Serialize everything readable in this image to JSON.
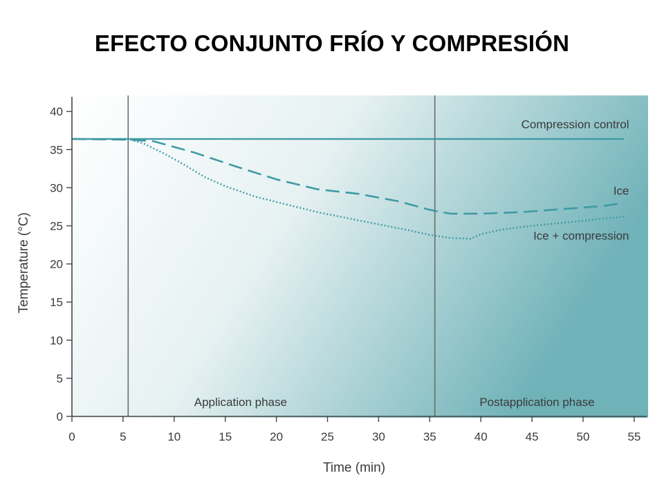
{
  "slide": {
    "title": "EFECTO CONJUNTO FRÍO Y COMPRESIÓN"
  },
  "colors": {
    "series": "#3f9aa3",
    "phase_line": "#6b6b6b",
    "axis": "#444444",
    "gradient_start": "#ffffff",
    "gradient_end": "#6fb2b8"
  },
  "chart_data": {
    "type": "line",
    "xlabel": "Time (min)",
    "ylabel": "Temperature (°C)",
    "xlim": [
      0,
      56
    ],
    "ylim": [
      0,
      41
    ],
    "xticks": [
      0,
      5,
      10,
      15,
      20,
      25,
      30,
      35,
      40,
      45,
      50,
      55
    ],
    "yticks": [
      0,
      5,
      10,
      15,
      20,
      25,
      30,
      35,
      40
    ],
    "grid": false,
    "legend": "none",
    "phase_markers": [
      5.5,
      35.5
    ],
    "phases": [
      {
        "label": "Application phase",
        "x": 16.5
      },
      {
        "label": "Postapplication phase",
        "x": 45.5
      }
    ],
    "series": [
      {
        "name": "Compression control",
        "style": "solid",
        "x": [
          0,
          54
        ],
        "y": [
          36.4,
          36.4
        ]
      },
      {
        "name": "Ice",
        "style": "dashed",
        "x": [
          0,
          5.5,
          8,
          12,
          16,
          20,
          24,
          28,
          32,
          35,
          37,
          40,
          44,
          48,
          52,
          54
        ],
        "y": [
          36.4,
          36.3,
          36.1,
          34.6,
          32.8,
          31.1,
          29.8,
          29.2,
          28.2,
          27.1,
          26.6,
          26.6,
          26.8,
          27.2,
          27.6,
          28.0
        ]
      },
      {
        "name": "Ice + compression",
        "style": "dotted",
        "x": [
          0,
          5.5,
          7,
          9,
          11,
          13,
          15,
          18,
          21,
          24,
          27,
          30,
          33,
          35,
          37,
          39,
          40,
          42,
          45,
          48,
          51,
          54
        ],
        "y": [
          36.4,
          36.4,
          35.8,
          34.5,
          33.0,
          31.4,
          30.2,
          28.8,
          27.8,
          26.8,
          26.0,
          25.2,
          24.4,
          23.8,
          23.4,
          23.3,
          23.9,
          24.5,
          25.0,
          25.4,
          25.8,
          26.2
        ]
      }
    ],
    "series_labels": [
      {
        "text": "Compression control",
        "x": 54.5,
        "y": 37.8
      },
      {
        "text": "Ice",
        "x": 54.5,
        "y": 29.1
      },
      {
        "text": "Ice + compression",
        "x": 54.5,
        "y": 23.2
      }
    ]
  }
}
